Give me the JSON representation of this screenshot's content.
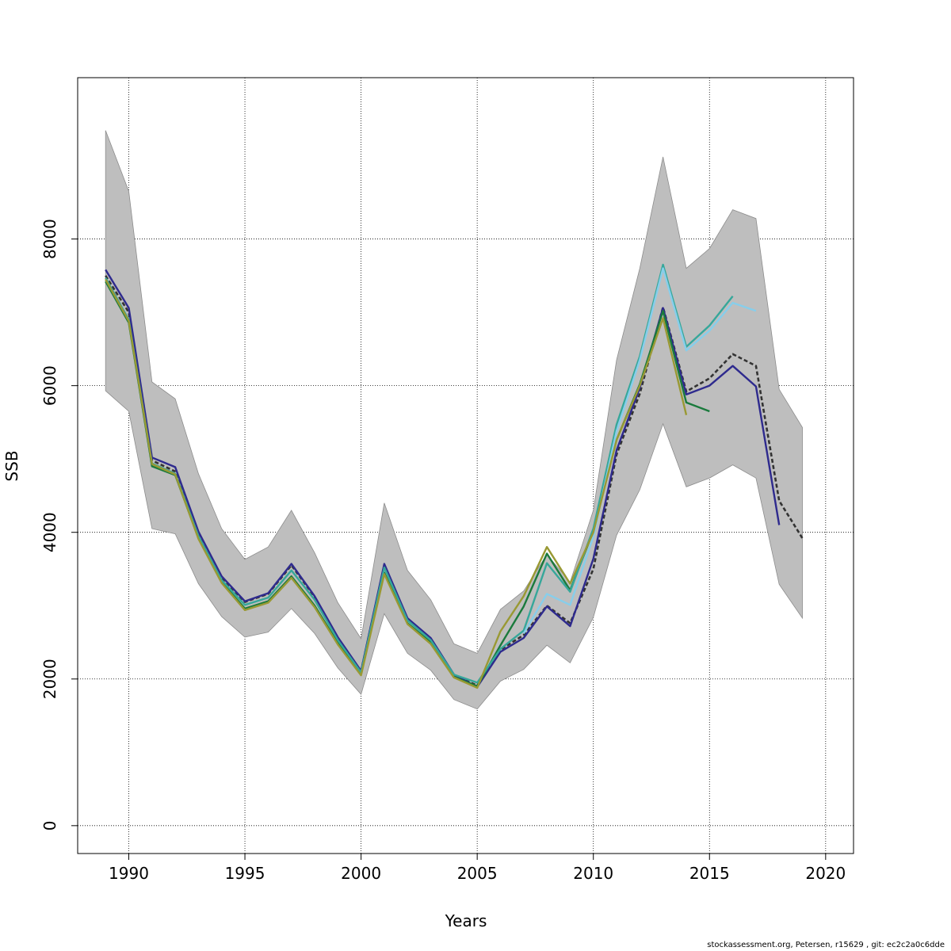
{
  "chart_data": {
    "type": "line",
    "title": "",
    "xlabel": "Years",
    "ylabel": "SSB",
    "xlim": [
      1987.8,
      2021.2
    ],
    "ylim": [
      -380,
      10200
    ],
    "x_ticks": [
      "1990",
      "1995",
      "2000",
      "2005",
      "2010",
      "2015",
      "2020"
    ],
    "y_ticks": [
      "0",
      "2000",
      "4000",
      "6000",
      "8000"
    ],
    "grid": true,
    "legend": "none",
    "confidence_band": {
      "color": "#bebebe",
      "x": [
        1989,
        1990,
        1991,
        1992,
        1993,
        1994,
        1995,
        1996,
        1997,
        1998,
        1999,
        2000,
        2001,
        2002,
        2003,
        2004,
        2005,
        2006,
        2007,
        2008,
        2009,
        2010,
        2011,
        2012,
        2013,
        2014,
        2015,
        2016,
        2017,
        2018,
        2019
      ],
      "upper": [
        9480,
        8650,
        6050,
        5820,
        4800,
        4050,
        3630,
        3800,
        4300,
        3720,
        3040,
        2550,
        4400,
        3480,
        3080,
        2480,
        2350,
        2950,
        3200,
        3700,
        3320,
        4300,
        6350,
        7600,
        9120,
        7600,
        7870,
        8400,
        8280,
        5950,
        5430
      ],
      "lower": [
        5930,
        5650,
        4050,
        3980,
        3300,
        2850,
        2570,
        2640,
        2960,
        2620,
        2150,
        1790,
        2890,
        2350,
        2120,
        1720,
        1590,
        1970,
        2130,
        2460,
        2220,
        2840,
        3960,
        4580,
        5480,
        4620,
        4740,
        4920,
        4740,
        3290,
        2830
      ]
    },
    "series": [
      {
        "color": "#333333",
        "dashed": true,
        "x": [
          1989,
          1990,
          1991,
          1992,
          1993,
          1994,
          1995,
          1996,
          1997,
          1998,
          1999,
          2000,
          2001,
          2002,
          2003,
          2004,
          2005,
          2006,
          2007,
          2008,
          2009,
          2010,
          2011,
          2012,
          2013,
          2014,
          2015,
          2016,
          2017,
          2018,
          2019
        ],
        "values": [
          7500,
          7000,
          4980,
          4830,
          3990,
          3380,
          3050,
          3160,
          3550,
          3120,
          2560,
          2100,
          3550,
          2820,
          2550,
          2050,
          1910,
          2400,
          2600,
          3000,
          2760,
          3500,
          5060,
          5890,
          7070,
          5920,
          6100,
          6430,
          6270,
          4430,
          3920
        ]
      },
      {
        "color": "#2e2a8e",
        "dashed": false,
        "x": [
          1989,
          1990,
          1991,
          1992,
          1993,
          1994,
          1995,
          1996,
          1997,
          1998,
          1999,
          2000,
          2001,
          2002,
          2003,
          2004,
          2005,
          2006,
          2007,
          2008,
          2009,
          2010,
          2011,
          2012,
          2013,
          2014,
          2015,
          2016,
          2017,
          2018
        ],
        "values": [
          7580,
          7060,
          5020,
          4890,
          4010,
          3400,
          3060,
          3170,
          3570,
          3130,
          2570,
          2110,
          3570,
          2830,
          2560,
          2060,
          1890,
          2370,
          2560,
          2990,
          2720,
          3640,
          5120,
          5970,
          7060,
          5880,
          6000,
          6270,
          5990,
          4100
        ]
      },
      {
        "color": "#1a7a3c",
        "dashed": false,
        "x": [
          1989,
          1990,
          1991,
          1992,
          1993,
          1994,
          1995,
          1996,
          1997,
          1998,
          1999,
          2000,
          2001,
          2002,
          2003,
          2004,
          2005,
          2006,
          2007,
          2008,
          2009,
          2010,
          2011,
          2012,
          2013,
          2014,
          2015
        ],
        "values": [
          7420,
          6860,
          4900,
          4780,
          3920,
          3320,
          2960,
          3060,
          3400,
          3000,
          2490,
          2070,
          3450,
          2760,
          2500,
          2030,
          1900,
          2460,
          2990,
          3710,
          3210,
          4020,
          5260,
          6020,
          7020,
          5770,
          5650
        ]
      },
      {
        "color": "#36a79a",
        "dashed": false,
        "x": [
          1989,
          1990,
          1991,
          1992,
          1993,
          1994,
          1995,
          1996,
          1997,
          1998,
          1999,
          2000,
          2001,
          2002,
          2003,
          2004,
          2005,
          2006,
          2007,
          2008,
          2009,
          2010,
          2011,
          2012,
          2013,
          2014,
          2015,
          2016
        ],
        "values": [
          7470,
          6900,
          4940,
          4800,
          3950,
          3350,
          3010,
          3110,
          3480,
          3080,
          2530,
          2090,
          3520,
          2800,
          2530,
          2060,
          1950,
          2410,
          2660,
          3580,
          3190,
          4050,
          5470,
          6400,
          7650,
          6530,
          6820,
          7220
        ]
      },
      {
        "color": "#87ceeb",
        "dashed": false,
        "x": [
          2007,
          2008,
          2009,
          2010,
          2011,
          2012,
          2013,
          2014,
          2015,
          2016,
          2017
        ],
        "values": [
          2620,
          3160,
          3010,
          3940,
          5380,
          6350,
          7600,
          6480,
          6750,
          7130,
          7020
        ]
      },
      {
        "color": "#999933",
        "dashed": false,
        "x": [
          1989,
          1990,
          1991,
          1992,
          1993,
          1994,
          1995,
          1996,
          1997,
          1998,
          1999,
          2000,
          2001,
          2002,
          2003,
          2004,
          2005,
          2006,
          2007,
          2008,
          2009,
          2010,
          2011,
          2012,
          2013,
          2014
        ],
        "values": [
          7450,
          6880,
          4930,
          4790,
          3910,
          3310,
          2940,
          3040,
          3380,
          2980,
          2470,
          2050,
          3430,
          2750,
          2480,
          2020,
          1880,
          2650,
          3130,
          3800,
          3300,
          4000,
          5260,
          6000,
          6920,
          5600
        ]
      }
    ]
  },
  "footer": {
    "note": "stockassessment.org, Petersen, r15629 , git: ec2c2a0c6dde"
  }
}
